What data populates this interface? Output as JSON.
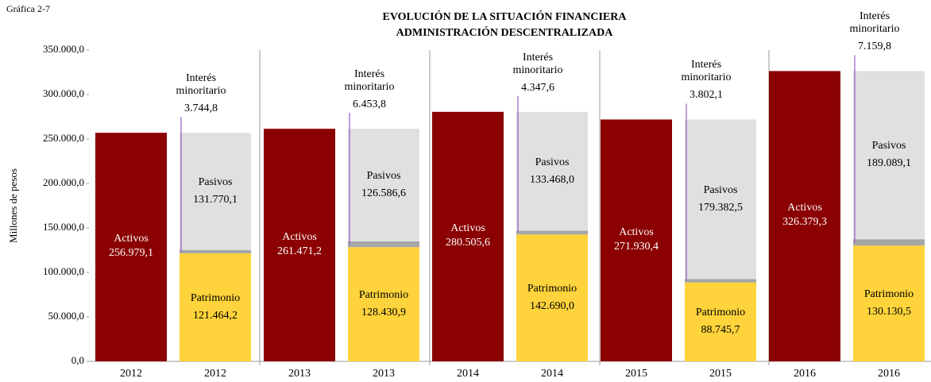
{
  "chart_data": {
    "type": "stacked_bar",
    "figure_label": "Gráfica 2-7",
    "title": "EVOLUCIÓN DE LA SITUACIÓN FINANCIERA",
    "subtitle": "ADMINISTRACIÓN DESCENTRALIZADA",
    "y_label": "Millones  de pesos",
    "categories": [
      "2012",
      "2012",
      "2013",
      "2013",
      "2014",
      "2014",
      "2015",
      "2015",
      "2016",
      "2016"
    ],
    "series": [
      {
        "name": "Activos",
        "color": "#8b0000",
        "values": [
          256979.1,
          null,
          261471.2,
          null,
          280505.6,
          null,
          271930.4,
          null,
          326379.3,
          null
        ],
        "value_labels": [
          "256.979,1",
          null,
          "261.471,2",
          null,
          "280.505,6",
          null,
          "271.930,4",
          null,
          "326.379,3",
          null
        ]
      },
      {
        "name": "Patrimonio",
        "color": "#ffd33b",
        "values": [
          null,
          121464.2,
          null,
          128430.9,
          null,
          142690.0,
          null,
          88745.7,
          null,
          130130.5
        ],
        "value_labels": [
          null,
          "121.464,2",
          null,
          "128.430,9",
          null,
          "142.690,0",
          null,
          "88.745,7",
          null,
          "130.130,5"
        ]
      },
      {
        "name": "Interés minoritario",
        "color": "#a6a6a6",
        "values": [
          null,
          3744.8,
          null,
          6453.8,
          null,
          4347.6,
          null,
          3802.1,
          null,
          7159.8
        ],
        "value_labels": [
          null,
          "3.744,8",
          null,
          "6.453,8",
          null,
          "4.347,6",
          null,
          "3.802,1",
          null,
          "7.159,8"
        ]
      },
      {
        "name": "Pasivos",
        "color": "#e0e0e0",
        "values": [
          null,
          131770.1,
          null,
          126586.6,
          null,
          133468.0,
          null,
          179382.5,
          null,
          189089.1
        ],
        "value_labels": [
          null,
          "131.770,1",
          null,
          "126.586,6",
          null,
          "133.468,0",
          null,
          "179.382,5",
          null,
          "189.089,1"
        ]
      }
    ],
    "ylim": [
      0,
      350000
    ],
    "yticks": [
      {
        "value": 0,
        "label": "0,0"
      },
      {
        "value": 50000,
        "label": "50.000,0"
      },
      {
        "value": 100000,
        "label": "100.000,0"
      },
      {
        "value": 150000,
        "label": "150.000,0"
      },
      {
        "value": 200000,
        "label": "200.000,0"
      },
      {
        "value": 250000,
        "label": "250.000,0"
      },
      {
        "value": 300000,
        "label": "300.000,0"
      },
      {
        "value": 350000,
        "label": "350.000,0"
      }
    ],
    "grid": false
  }
}
